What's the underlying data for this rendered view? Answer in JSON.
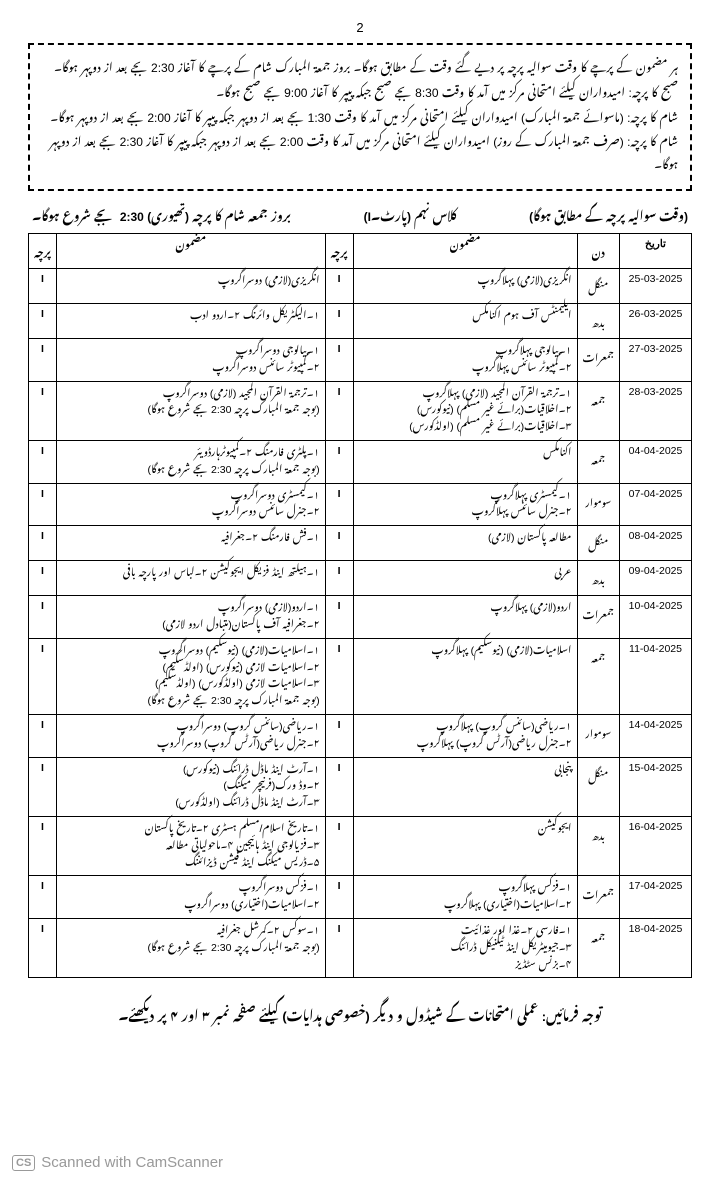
{
  "pageNumber": "2",
  "instructions": [
    "ہر مضمون کے پرچے کا وقت سوالیہ پرچہ پر دیے گئے وقت کے مطابق ہوگا۔ بروز جمعۃ المبارک شام کے پرچے کا آغاز 2:30 بجے بعد از دوپہر ہوگا۔",
    "صبح کا پرچہ: امیدواران کیلئے امتحانی مرکز میں آمد کا وقت 8:30 بجے صبح جبکہ پیپر کا آغاز 9:00 بجے صبح ہوگا۔",
    "شام کا پرچہ: (ماسوائے جمعۃ المبارک) امیدواران کیلئے امتحانی مرکز میں آمد کا وقت 1:30 بجے بعد از دوپہر جبکہ پیپر کا آغاز 2:00 بجے بعد از دوپہر ہوگا۔",
    "شام کا پرچہ: (صرف جمعۃ المبارک کے روز) امیدواران کیلئے امتحانی مرکز میں آمد کا وقت 2:00 بجے بعد از دوپہر جبکہ پیپر کا آغاز 2:30 بجے بعد از دوپہر ہوگا۔"
  ],
  "headerRight": "(وقت سوالیہ پرچہ کے مطابق ہوگا)",
  "headerCenter": "کلاس نہم    (پارٹ۔I)",
  "headerLeft": "بروز جمعہ شام کا پرچہ (تھیوری) 2:30 بجے شروع ہوگا۔",
  "columns": {
    "date": "تاریخ",
    "day": "دن",
    "subject": "مضمون",
    "paper": "پرچہ"
  },
  "rows": [
    {
      "date": "25-03-2025",
      "day": "منگل",
      "s1": "انگریزی(لازمی)    پہلاگروپ",
      "p1": "I",
      "s2": "انگریزی(لازمی)    دوسراگروپ",
      "p2": "I"
    },
    {
      "date": "26-03-2025",
      "day": "بدھ",
      "s1": "ایلیمنٹس آف ہوم اکنامکس",
      "p1": "I",
      "s2": "۱۔الیکٹریکل وائرنگ    ۲۔اردو ادب",
      "p2": "I"
    },
    {
      "date": "27-03-2025",
      "day": "جمعرات",
      "s1": "۱۔بیالوجی    پہلاگروپ\n۲۔کمپیوٹر سائنس    پہلاگروپ",
      "p1": "I",
      "s2": "۱۔بیالوجی    دوسراگروپ\n۲۔کمپیوٹر سائنس    دوسراگروپ",
      "p2": "I"
    },
    {
      "date": "28-03-2025",
      "day": "جمعہ",
      "s1": "۱۔ترجمۃ القرآن المجید (لازمی)    پہلاگروپ\n۲۔اخلاقیات(برائے غیر مسلم) (نیوکورس)\n۳۔اخلاقیات(برائے غیر مسلم) (اولڈکورس)",
      "p1": "I",
      "s2": "۱۔ترجمۃ القرآن المجید (لازمی)    دوسراگروپ\n(بوجہ جمعۃ المبارک پرچہ 2:30 بجے شروع ہوگا)",
      "p2": "I"
    },
    {
      "date": "04-04-2025",
      "day": "جمعہ",
      "s1": "اکنامکس",
      "p1": "I",
      "s2": "۱۔پلٹری فارمنگ    ۲۔کمپیوٹرہارڈویئر\n(بوجہ جمعۃ المبارک پرچہ 2:30 بجے شروع ہوگا)",
      "p2": "I"
    },
    {
      "date": "07-04-2025",
      "day": "سوموار",
      "s1": "۱۔کیمسٹری    پہلاگروپ\n۲۔جنرل سائنس    پہلاگروپ",
      "p1": "I",
      "s2": "۱۔کیمسٹری    دوسراگروپ\n۲۔جنرل سائنس    دوسراگروپ",
      "p2": "I"
    },
    {
      "date": "08-04-2025",
      "day": "منگل",
      "s1": "مطالعہ پاکستان (لازمی)",
      "p1": "I",
      "s2": "۱۔فش فارمنگ    ۲۔جغرافیہ",
      "p2": "I"
    },
    {
      "date": "09-04-2025",
      "day": "بدھ",
      "s1": "عربی",
      "p1": "I",
      "s2": "۱۔ہیلتھ اینڈ فزیکل ایجوکیشن    ۲۔لباس اور پارچہ بافی",
      "p2": "I"
    },
    {
      "date": "10-04-2025",
      "day": "جمعرات",
      "s1": "اردو(لازمی)    پہلاگروپ",
      "p1": "I",
      "s2": "۱۔اردو(لازمی)    دوسراگروپ\n۲۔جغرافیہ آف پاکستان(متبادل اردو لازمی)",
      "p2": "I"
    },
    {
      "date": "11-04-2025",
      "day": "جمعہ",
      "s1": "اسلامیات(لازمی) (نیوسکیم)    پہلاگروپ",
      "p1": "I",
      "s2": "۱۔اسلامیات(لازمی) (نیوسکیم)    دوسراگروپ\n۲۔اسلامیات لازمی (نیوکورس) (اولڈسکیم)\n۳۔اسلامیات لازمی (اولڈکورس) (اولڈسکیم)\n(بوجہ جمعۃ المبارک پرچہ 2:30 بجے شروع ہوگا)",
      "p2": "I"
    },
    {
      "date": "14-04-2025",
      "day": "سوموار",
      "s1": "۱۔ریاضی(سائنس گروپ)    پہلاگروپ\n۲۔جنرل ریاضی(آرٹس گروپ)    پہلاگروپ",
      "p1": "I",
      "s2": "۱۔ریاضی(سائنس گروپ)    دوسراگروپ\n۲۔جنرل ریاضی(آرٹس گروپ)    دوسراگروپ",
      "p2": "I"
    },
    {
      "date": "15-04-2025",
      "day": "منگل",
      "s1": "پنجابی",
      "p1": "I",
      "s2": "۱۔آرٹ اینڈ ماڈل ڈرائنگ (نیوکورس)\n۲۔وڈ ورک(فرنیچر میکنگ)\n۳۔آرٹ اینڈ ماڈل ڈرائنگ (اولڈکورس)",
      "p2": "I"
    },
    {
      "date": "16-04-2025",
      "day": "بدھ",
      "s1": "ایجوکیشن",
      "p1": "I",
      "s2": "۱۔تاریخ اسلام/مسلم ہسٹری    ۲۔تاریخ پاکستان\n۳۔فزیالوجی اینڈ ہائیجین    ۴۔ماحولیاتی مطالعہ\n۵۔ڈریس میکنگ اینڈ فیشن ڈیزائننگ",
      "p2": "I"
    },
    {
      "date": "17-04-2025",
      "day": "جمعرات",
      "s1": "۱۔فزکس    پہلاگروپ\n۲۔اسلامیات(اختیاری)    پہلاگروپ",
      "p1": "I",
      "s2": "۱۔فزکس    دوسراگروپ\n۲۔اسلامیات(اختیاری)    دوسراگروپ",
      "p2": "I"
    },
    {
      "date": "18-04-2025",
      "day": "جمعہ",
      "s1": "۱۔فارسی    ۲۔غذا اور غذائیت\n۳۔جیومیٹریکل اینڈ ٹیکنیکل ڈرائنگ\n۴۔بزنس سٹڈیز",
      "p1": "I",
      "s2": "۱۔سوکس    ۲۔کمرشل جغرافیہ\n(بوجہ جمعۃ المبارک پرچہ 2:30 بجے شروع ہوگا)",
      "p2": "I"
    }
  ],
  "footer": "توجہ فرمائیں: عملی امتحانات کے شیڈول و دیگر (خصوصی ہدایات) کیلئے صفحہ نمبر ۳ اور ۴ پر دیکھئے۔",
  "camScanner": "Scanned with CamScanner",
  "csBadge": "CS"
}
